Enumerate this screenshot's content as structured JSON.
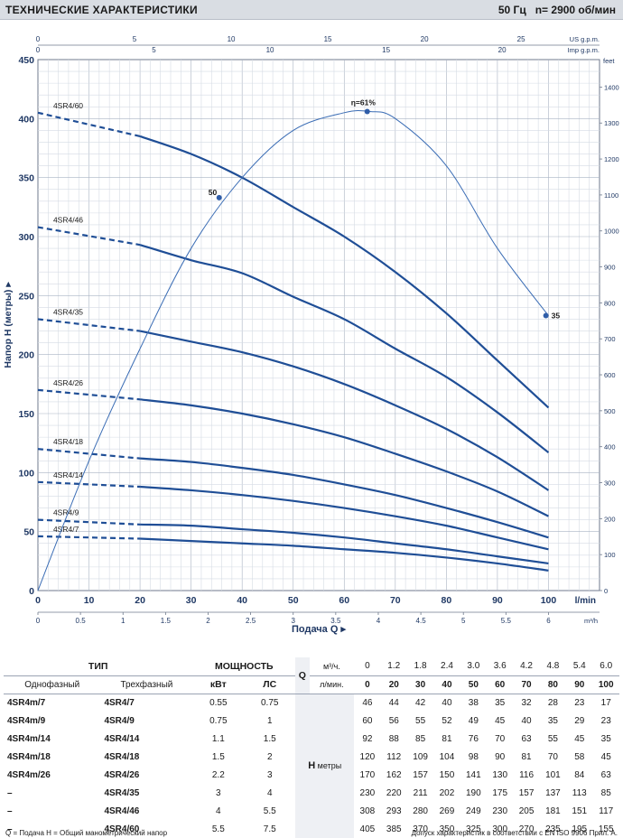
{
  "header": {
    "title": "ТЕХНИЧЕСКИЕ ХАРАКТЕРИСТИКИ",
    "freq": "50 Гц",
    "speed": "n= 2900 об/мин"
  },
  "chart_data": {
    "type": "line",
    "ylabel": "Напор Н (метры)",
    "xlabel": "Подача Q",
    "ylim": [
      0,
      450
    ],
    "xlim_lmin": [
      0,
      110
    ],
    "y_ticks": [
      0,
      50,
      100,
      150,
      200,
      250,
      300,
      350,
      400,
      450
    ],
    "x_ticks_lmin": [
      0,
      10,
      20,
      30,
      40,
      50,
      60,
      70,
      80,
      90,
      100
    ],
    "x_unit_lmin": "l/min",
    "x_ticks_m3h": [
      "0",
      "0.5",
      "1",
      "1.5",
      "2",
      "2.5",
      "3",
      "3.5",
      "4",
      "4.5",
      "5",
      "5.5",
      "6"
    ],
    "x_unit_m3h": "m³/h",
    "top_axis_us": {
      "label": "US g.p.m.",
      "ticks": [
        "0",
        "5",
        "10",
        "15",
        "20",
        "25"
      ]
    },
    "top_axis_imp": {
      "label": "Imp g.p.m.",
      "ticks": [
        "0",
        "5",
        "10",
        "15",
        "20"
      ]
    },
    "right_axis": {
      "label": "feet",
      "ticks": [
        "0",
        "100",
        "200",
        "300",
        "400",
        "500",
        "600",
        "700",
        "800",
        "900",
        "1000",
        "1100",
        "1200",
        "1300",
        "1400"
      ]
    },
    "grid": true,
    "series": [
      {
        "name": "4SR4/60",
        "x": [
          0,
          20,
          30,
          40,
          50,
          60,
          70,
          80,
          90,
          100
        ],
        "y": [
          405,
          385,
          370,
          350,
          325,
          300,
          270,
          235,
          195,
          155
        ]
      },
      {
        "name": "4SR4/46",
        "x": [
          0,
          20,
          30,
          40,
          50,
          60,
          70,
          80,
          90,
          100
        ],
        "y": [
          308,
          293,
          280,
          269,
          249,
          230,
          205,
          181,
          151,
          117
        ]
      },
      {
        "name": "4SR4/35",
        "x": [
          0,
          20,
          30,
          40,
          50,
          60,
          70,
          80,
          90,
          100
        ],
        "y": [
          230,
          220,
          211,
          202,
          190,
          175,
          157,
          137,
          113,
          85
        ]
      },
      {
        "name": "4SR4/26",
        "x": [
          0,
          20,
          30,
          40,
          50,
          60,
          70,
          80,
          90,
          100
        ],
        "y": [
          170,
          162,
          157,
          150,
          141,
          130,
          116,
          101,
          84,
          63
        ]
      },
      {
        "name": "4SR4/18",
        "x": [
          0,
          20,
          30,
          40,
          50,
          60,
          70,
          80,
          90,
          100
        ],
        "y": [
          120,
          112,
          109,
          104,
          98,
          90,
          81,
          70,
          58,
          45
        ]
      },
      {
        "name": "4SR4/14",
        "x": [
          0,
          20,
          30,
          40,
          50,
          60,
          70,
          80,
          90,
          100
        ],
        "y": [
          92,
          88,
          85,
          81,
          76,
          70,
          63,
          55,
          45,
          35
        ]
      },
      {
        "name": "4SR4/9",
        "x": [
          0,
          20,
          30,
          40,
          50,
          60,
          70,
          80,
          90,
          100
        ],
        "y": [
          60,
          56,
          55,
          52,
          49,
          45,
          40,
          35,
          29,
          23
        ]
      },
      {
        "name": "4SR4/7",
        "x": [
          0,
          20,
          30,
          40,
          50,
          60,
          70,
          80,
          90,
          100
        ],
        "y": [
          46,
          44,
          42,
          40,
          38,
          35,
          32,
          28,
          23,
          17
        ]
      }
    ],
    "efficiency": {
      "label": "η=61%",
      "x": [
        0,
        10,
        20,
        30,
        40,
        50,
        60,
        65,
        70,
        80,
        90,
        100
      ],
      "y": [
        0,
        110,
        205,
        290,
        350,
        390,
        405,
        406,
        400,
        360,
        290,
        233
      ],
      "markers": [
        {
          "label": "50",
          "x": 35.5,
          "y": 333
        },
        {
          "label": "η=61%",
          "x": 64.5,
          "y": 406
        },
        {
          "label": "35",
          "x": 99.5,
          "y": 233
        }
      ]
    }
  },
  "table": {
    "col_type": "ТИП",
    "col_power": "МОЩНОСТЬ",
    "sub_single": "Однофазный",
    "sub_three": "Трехфазный",
    "sub_kw": "кВт",
    "sub_hp": "ЛС",
    "q_letter": "Q",
    "q_unit_m3": "м³/ч.",
    "q_unit_l": "л/мин.",
    "h_letter": "H",
    "h_unit": "метры",
    "q_m3h": [
      "0",
      "1.2",
      "1.8",
      "2.4",
      "3.0",
      "3.6",
      "4.2",
      "4.8",
      "5.4",
      "6.0"
    ],
    "q_lmin": [
      "0",
      "20",
      "30",
      "40",
      "50",
      "60",
      "70",
      "80",
      "90",
      "100"
    ],
    "rows": [
      {
        "single": "4SR4m/7",
        "three": "4SR4/7",
        "kw": "0.55",
        "hp": "0.75",
        "h": [
          "46",
          "44",
          "42",
          "40",
          "38",
          "35",
          "32",
          "28",
          "23",
          "17"
        ]
      },
      {
        "single": "4SR4m/9",
        "three": "4SR4/9",
        "kw": "0.75",
        "hp": "1",
        "h": [
          "60",
          "56",
          "55",
          "52",
          "49",
          "45",
          "40",
          "35",
          "29",
          "23"
        ]
      },
      {
        "single": "4SR4m/14",
        "three": "4SR4/14",
        "kw": "1.1",
        "hp": "1.5",
        "h": [
          "92",
          "88",
          "85",
          "81",
          "76",
          "70",
          "63",
          "55",
          "45",
          "35"
        ]
      },
      {
        "single": "4SR4m/18",
        "three": "4SR4/18",
        "kw": "1.5",
        "hp": "2",
        "h": [
          "120",
          "112",
          "109",
          "104",
          "98",
          "90",
          "81",
          "70",
          "58",
          "45"
        ]
      },
      {
        "single": "4SR4m/26",
        "three": "4SR4/26",
        "kw": "2.2",
        "hp": "3",
        "h": [
          "170",
          "162",
          "157",
          "150",
          "141",
          "130",
          "116",
          "101",
          "84",
          "63"
        ]
      },
      {
        "single": "–",
        "three": "4SR4/35",
        "kw": "3",
        "hp": "4",
        "h": [
          "230",
          "220",
          "211",
          "202",
          "190",
          "175",
          "157",
          "137",
          "113",
          "85"
        ]
      },
      {
        "single": "–",
        "three": "4SR4/46",
        "kw": "4",
        "hp": "5.5",
        "h": [
          "308",
          "293",
          "280",
          "269",
          "249",
          "230",
          "205",
          "181",
          "151",
          "117"
        ]
      },
      {
        "single": "–",
        "three": "4SR4/60",
        "kw": "5.5",
        "hp": "7.5",
        "h": [
          "405",
          "385",
          "370",
          "350",
          "325",
          "300",
          "270",
          "235",
          "195",
          "155"
        ]
      }
    ]
  },
  "footer": {
    "left": "Q = Подача   H = Общий манометрический напор",
    "right": "Допуск характеристик в соответствии с EN ISO 9906 Прил. A."
  }
}
